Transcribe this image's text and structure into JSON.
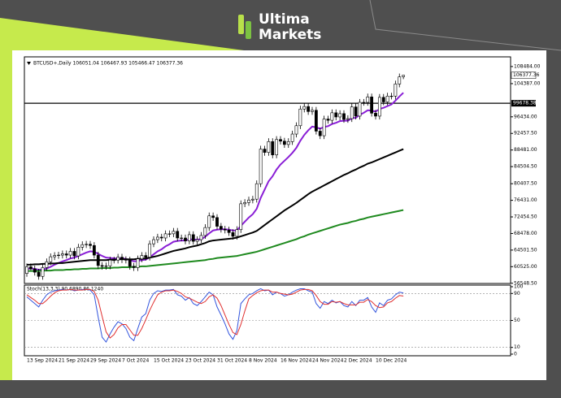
{
  "brand": {
    "line1": "Ultima",
    "line2": "Markets"
  },
  "chart_data": [
    {
      "type": "candlestick",
      "title": "BTCUSD+,Daily 106051.04 106467.93 105466.47 106377.36",
      "categories": [
        "13 Sep 2024",
        null,
        null,
        null,
        null,
        null,
        null,
        null,
        "21 Sep 2024",
        null,
        null,
        null,
        null,
        null,
        null,
        null,
        "29 Sep 2024",
        null,
        null,
        null,
        null,
        null,
        null,
        null,
        "7 Oct 2024",
        null,
        null,
        null,
        null,
        null,
        null,
        null,
        "15 Oct 2024",
        null,
        null,
        null,
        null,
        null,
        null,
        null,
        "23 Oct 2024",
        null,
        null,
        null,
        null,
        null,
        null,
        null,
        "31 Oct 2024",
        null,
        null,
        null,
        null,
        null,
        null,
        null,
        "8 Nov 2024",
        null,
        null,
        null,
        null,
        null,
        null,
        null,
        "16 Nov 2024",
        null,
        null,
        null,
        null,
        null,
        null,
        null,
        "24 Nov 2024",
        null,
        null,
        null,
        null,
        null,
        null,
        null,
        "2 Dec 2024",
        null,
        null,
        null,
        null,
        null,
        null,
        null,
        "10 Dec 2024",
        null,
        null,
        null,
        null,
        null,
        null,
        null
      ],
      "open": [
        58900,
        60500,
        60000,
        59200,
        58200,
        60300,
        61700,
        62900,
        63200,
        63300,
        63600,
        63300,
        64200,
        63100,
        65200,
        65800,
        65900,
        65600,
        63300,
        60800,
        60600,
        60700,
        62100,
        62100,
        62800,
        62200,
        62100,
        60600,
        60300,
        62400,
        63200,
        62800,
        66000,
        67000,
        67600,
        67400,
        68400,
        68400,
        69000,
        67400,
        67400,
        66700,
        68200,
        66600,
        67000,
        68000,
        69900,
        72700,
        72300,
        70200,
        69500,
        69300,
        68700,
        67800,
        69400,
        75600,
        75900,
        76500,
        76700,
        80400,
        88700,
        87900,
        90500,
        87300,
        91000,
        90600,
        89800,
        90500,
        92300,
        94300,
        98300,
        98900,
        97700,
        98000,
        93000,
        91900,
        95900,
        95600,
        97400,
        96400,
        97200,
        95800,
        96000,
        98800,
        96600,
        99900,
        99900,
        101200,
        97300,
        96600,
        101100,
        100000,
        101400,
        101400,
        104300,
        106051.04
      ],
      "high": [
        61300,
        61300,
        60800,
        60000,
        61100,
        62500,
        63700,
        64000,
        64100,
        64400,
        64400,
        65000,
        65000,
        66000,
        66600,
        66700,
        66700,
        66400,
        64100,
        61600,
        61500,
        62900,
        62900,
        63600,
        63600,
        63000,
        62900,
        61400,
        63200,
        64000,
        64000,
        66800,
        67800,
        68400,
        68400,
        69200,
        69200,
        69800,
        69800,
        68200,
        68200,
        69000,
        69000,
        67800,
        68800,
        70700,
        73500,
        73500,
        73100,
        71000,
        70300,
        70100,
        69500,
        70200,
        76400,
        76700,
        77300,
        77500,
        81200,
        89500,
        89500,
        91300,
        91300,
        91800,
        91800,
        91400,
        91300,
        93100,
        95100,
        99100,
        99700,
        99700,
        98800,
        98800,
        93800,
        96700,
        96700,
        98200,
        98200,
        98000,
        98000,
        96800,
        99600,
        99600,
        100700,
        100700,
        102000,
        102000,
        98100,
        101900,
        101900,
        102200,
        102200,
        105100,
        106800,
        106467.93
      ],
      "low": [
        58100,
        59700,
        58400,
        57400,
        57400,
        59500,
        60900,
        62100,
        62400,
        62500,
        62500,
        62500,
        62300,
        62300,
        64400,
        65000,
        64800,
        62500,
        60000,
        59800,
        59800,
        59900,
        61300,
        61300,
        61400,
        61300,
        59800,
        59500,
        59500,
        61600,
        62000,
        62000,
        65200,
        66200,
        66600,
        66600,
        67600,
        67600,
        66600,
        66600,
        65900,
        65900,
        65800,
        65800,
        66200,
        67200,
        69100,
        71500,
        69400,
        68700,
        68500,
        67900,
        67000,
        67000,
        68600,
        74800,
        75100,
        75700,
        75900,
        79600,
        87100,
        87100,
        86500,
        86500,
        89800,
        89000,
        89000,
        89700,
        91500,
        93500,
        97500,
        96900,
        96900,
        92200,
        91100,
        91100,
        94800,
        94800,
        95600,
        95600,
        95000,
        95000,
        95200,
        95800,
        95800,
        99100,
        99100,
        96500,
        95800,
        95800,
        99200,
        99200,
        100600,
        100600,
        103500,
        105466.47
      ],
      "close": [
        60500,
        60000,
        59200,
        58200,
        60300,
        61700,
        62900,
        63200,
        63300,
        63600,
        63300,
        64200,
        63100,
        65200,
        65800,
        65900,
        65600,
        63300,
        60800,
        60600,
        60700,
        62100,
        62100,
        62800,
        62200,
        62100,
        60600,
        60300,
        62400,
        63200,
        62800,
        66000,
        67000,
        67600,
        67400,
        68400,
        68400,
        69000,
        67400,
        67400,
        66700,
        68200,
        66600,
        67000,
        68000,
        69900,
        72700,
        72300,
        70200,
        69500,
        69300,
        68700,
        67800,
        69400,
        75600,
        75900,
        76500,
        76700,
        80400,
        88700,
        87900,
        90500,
        87300,
        91000,
        90600,
        89800,
        90500,
        92300,
        94300,
        98300,
        98900,
        97700,
        98000,
        93000,
        91900,
        95900,
        95600,
        97400,
        96400,
        97200,
        95800,
        96000,
        98800,
        96600,
        99900,
        99900,
        101200,
        97300,
        96600,
        101100,
        100000,
        101400,
        101400,
        104300,
        106000,
        106377.36
      ],
      "series": [
        {
          "color": "#8a1fd6",
          "values": [
            60000,
            60100,
            60000,
            59800,
            59800,
            60100,
            60500,
            61000,
            61400,
            61800,
            62100,
            62500,
            62700,
            63100,
            63500,
            63900,
            64200,
            64100,
            63600,
            63100,
            62700,
            62600,
            62500,
            62500,
            62500,
            62400,
            62100,
            61800,
            61900,
            62100,
            62200,
            62800,
            63500,
            64200,
            64700,
            65400,
            65900,
            66500,
            66700,
            66800,
            66800,
            67100,
            67000,
            67000,
            67100,
            67700,
            68500,
            69200,
            69400,
            69500,
            69500,
            69400,
            69200,
            69200,
            70300,
            71300,
            72300,
            73100,
            74400,
            77000,
            79000,
            81000,
            82200,
            83800,
            85000,
            85900,
            86800,
            87800,
            89000,
            90700,
            92100,
            93200,
            94100,
            93900,
            93600,
            94000,
            94200,
            94700,
            95000,
            95400,
            95500,
            95500,
            96100,
            96200,
            96900,
            97400,
            98000,
            97900,
            97700,
            98300,
            98600,
            99000,
            99400,
            100300,
            101300,
            102200
          ]
        },
        {
          "color": "#000000",
          "values": [
            61000,
            61000,
            61100,
            61100,
            61200,
            61200,
            61300,
            61300,
            61400,
            61400,
            61500,
            61600,
            61700,
            61800,
            61900,
            62000,
            62100,
            62100,
            62100,
            62100,
            62100,
            62200,
            62200,
            62300,
            62300,
            62300,
            62300,
            62300,
            62400,
            62400,
            62500,
            62700,
            62900,
            63100,
            63400,
            63700,
            64000,
            64300,
            64500,
            64700,
            64900,
            65200,
            65400,
            65600,
            65900,
            66200,
            66600,
            66800,
            66900,
            67000,
            67100,
            67200,
            67300,
            67500,
            67800,
            68100,
            68400,
            68700,
            69100,
            69800,
            70500,
            71200,
            71900,
            72600,
            73300,
            74000,
            74600,
            75200,
            75800,
            76500,
            77200,
            77900,
            78500,
            79000,
            79500,
            80000,
            80500,
            81000,
            81500,
            82000,
            82500,
            82900,
            83400,
            83800,
            84300,
            84700,
            85200,
            85500,
            85900,
            86300,
            86700,
            87100,
            87500,
            87900,
            88300,
            88700
          ]
        },
        {
          "color": "#1f8a1f",
          "values": [
            59500,
            59500,
            59500,
            59500,
            59600,
            59600,
            59600,
            59700,
            59700,
            59700,
            59800,
            59800,
            59900,
            59900,
            60000,
            60000,
            60100,
            60100,
            60100,
            60200,
            60200,
            60200,
            60300,
            60300,
            60400,
            60400,
            60400,
            60500,
            60500,
            60600,
            60600,
            60700,
            60800,
            60900,
            61000,
            61100,
            61200,
            61300,
            61400,
            61500,
            61600,
            61700,
            61800,
            61900,
            62000,
            62100,
            62300,
            62400,
            62600,
            62700,
            62800,
            62900,
            63000,
            63100,
            63300,
            63500,
            63700,
            63900,
            64100,
            64400,
            64700,
            65000,
            65300,
            65600,
            65900,
            66200,
            66500,
            66800,
            67100,
            67500,
            67800,
            68200,
            68500,
            68800,
            69100,
            69400,
            69700,
            70000,
            70300,
            70600,
            70800,
            71000,
            71300,
            71500,
            71800,
            72000,
            72300,
            72500,
            72700,
            72900,
            73100,
            73300,
            73500,
            73700,
            73900,
            74100
          ]
        }
      ],
      "hline": 99678.38,
      "ylim": [
        56500,
        110800
      ],
      "yticks": [
        {
          "value": 108484,
          "label": "108484.00"
        },
        {
          "value": 104387,
          "label": "104387.00"
        },
        {
          "value": 96434,
          "label": "96434.00"
        },
        {
          "value": 92457.5,
          "label": "92457.50"
        },
        {
          "value": 88481,
          "label": "88481.00"
        },
        {
          "value": 84504.5,
          "label": "84504.50"
        },
        {
          "value": 80407.5,
          "label": "80407.50"
        },
        {
          "value": 76431,
          "label": "76431.00"
        },
        {
          "value": 72454.5,
          "label": "72454.50"
        },
        {
          "value": 68478,
          "label": "68478.00"
        },
        {
          "value": 64501.5,
          "label": "64501.50"
        },
        {
          "value": 60525,
          "label": "60525.00"
        },
        {
          "value": 56548.5,
          "label": "56548.50"
        }
      ]
    },
    {
      "type": "line",
      "title": "Stoch(13,3,3) 90.6890 86.1240",
      "series": [
        {
          "color": "#3355dd",
          "values": [
            85,
            80,
            75,
            70,
            80,
            88,
            92,
            94,
            95,
            96,
            95,
            96,
            94,
            95,
            96,
            96,
            95,
            88,
            55,
            25,
            18,
            30,
            40,
            48,
            45,
            38,
            25,
            20,
            38,
            55,
            60,
            80,
            90,
            94,
            93,
            95,
            95,
            96,
            88,
            86,
            80,
            84,
            75,
            72,
            78,
            85,
            92,
            88,
            70,
            58,
            45,
            30,
            22,
            35,
            75,
            82,
            88,
            90,
            94,
            97,
            94,
            95,
            88,
            92,
            90,
            86,
            88,
            92,
            95,
            97,
            97,
            94,
            92,
            75,
            68,
            78,
            75,
            80,
            76,
            78,
            72,
            70,
            78,
            72,
            80,
            80,
            84,
            70,
            62,
            76,
            72,
            80,
            82,
            88,
            92,
            90.689
          ]
        },
        {
          "color": "#e03030",
          "values": [
            88,
            84,
            80,
            75,
            75,
            80,
            86,
            91,
            94,
            95,
            95,
            96,
            95,
            95,
            95,
            96,
            96,
            93,
            80,
            56,
            33,
            24,
            29,
            39,
            44,
            44,
            36,
            28,
            28,
            38,
            51,
            65,
            77,
            88,
            92,
            94,
            94,
            95,
            93,
            90,
            85,
            83,
            80,
            77,
            75,
            78,
            85,
            88,
            83,
            72,
            58,
            44,
            32,
            29,
            44,
            64,
            82,
            87,
            91,
            94,
            95,
            95,
            92,
            92,
            90,
            89,
            88,
            89,
            92,
            95,
            96,
            96,
            94,
            87,
            78,
            74,
            74,
            78,
            77,
            78,
            75,
            73,
            73,
            73,
            77,
            77,
            81,
            78,
            72,
            69,
            70,
            76,
            78,
            83,
            87,
            86.124
          ]
        }
      ],
      "ylim": [
        0,
        100
      ],
      "yticks": [
        0,
        10,
        50,
        90,
        100
      ]
    }
  ]
}
